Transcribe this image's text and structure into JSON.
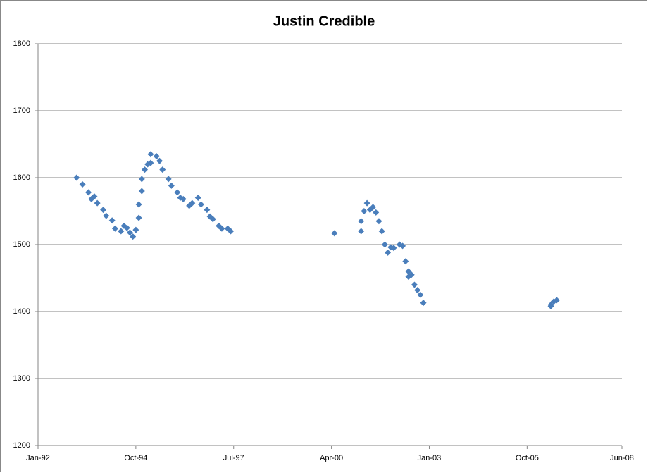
{
  "chart_data": {
    "type": "scatter",
    "title": "Justin Credible",
    "series": [
      {
        "color": "#4a7ebb",
        "x": [
          "1993-02",
          "1993-04",
          "1993-06",
          "1993-07",
          "1993-08",
          "1993-09",
          "1993-11",
          "1993-12",
          "1994-02",
          "1994-03",
          "1994-05",
          "1994-06",
          "1994-07",
          "1994-08",
          "1994-09",
          "1994-10",
          "1994-11",
          "1994-11",
          "1994-12",
          "1994-12",
          "1995-01",
          "1995-02",
          "1995-03",
          "1995-03",
          "1995-05",
          "1995-06",
          "1995-07",
          "1995-09",
          "1995-10",
          "1995-12",
          "1996-01",
          "1996-02",
          "1996-04",
          "1996-05",
          "1996-07",
          "1996-08",
          "1996-10",
          "1996-11",
          "1996-12",
          "1997-02",
          "1997-03",
          "1997-05",
          "1997-06",
          "2000-05",
          "2001-02",
          "2001-02",
          "2001-03",
          "2001-04",
          "2001-05",
          "2001-06",
          "2001-07",
          "2001-08",
          "2001-09",
          "2001-10",
          "2001-11",
          "2001-12",
          "2002-01",
          "2002-03",
          "2002-04",
          "2002-05",
          "2002-06",
          "2002-06",
          "2002-07",
          "2002-08",
          "2002-09",
          "2002-10",
          "2002-11",
          "2006-06",
          "2006-06",
          "2006-07",
          "2006-08"
        ],
        "values": [
          1600,
          1590,
          1578,
          1568,
          1572,
          1562,
          1552,
          1543,
          1536,
          1524,
          1520,
          1528,
          1525,
          1518,
          1512,
          1522,
          1540,
          1560,
          1580,
          1598,
          1612,
          1620,
          1622,
          1635,
          1632,
          1625,
          1612,
          1598,
          1588,
          1578,
          1570,
          1568,
          1558,
          1562,
          1570,
          1560,
          1552,
          1542,
          1538,
          1528,
          1524,
          1524,
          1520,
          1517,
          1520,
          1535,
          1550,
          1562,
          1552,
          1556,
          1548,
          1535,
          1520,
          1500,
          1488,
          1496,
          1495,
          1500,
          1498,
          1475,
          1460,
          1452,
          1455,
          1440,
          1432,
          1425,
          1413,
          1410,
          1408,
          1415,
          1417
        ]
      }
    ],
    "xlim": [
      "1992-01",
      "2008-06"
    ],
    "xticks": [
      {
        "value": "1992-01",
        "label": "Jan-92"
      },
      {
        "value": "1994-10",
        "label": "Oct-94"
      },
      {
        "value": "1997-07",
        "label": "Jul-97"
      },
      {
        "value": "2000-04",
        "label": "Apr-00"
      },
      {
        "value": "2003-01",
        "label": "Jan-03"
      },
      {
        "value": "2005-10",
        "label": "Oct-05"
      },
      {
        "value": "2008-06",
        "label": "Jun-08"
      }
    ],
    "ylim": [
      1200,
      1800
    ],
    "yticks": [
      1200,
      1300,
      1400,
      1500,
      1600,
      1700,
      1800
    ],
    "grid": true
  }
}
